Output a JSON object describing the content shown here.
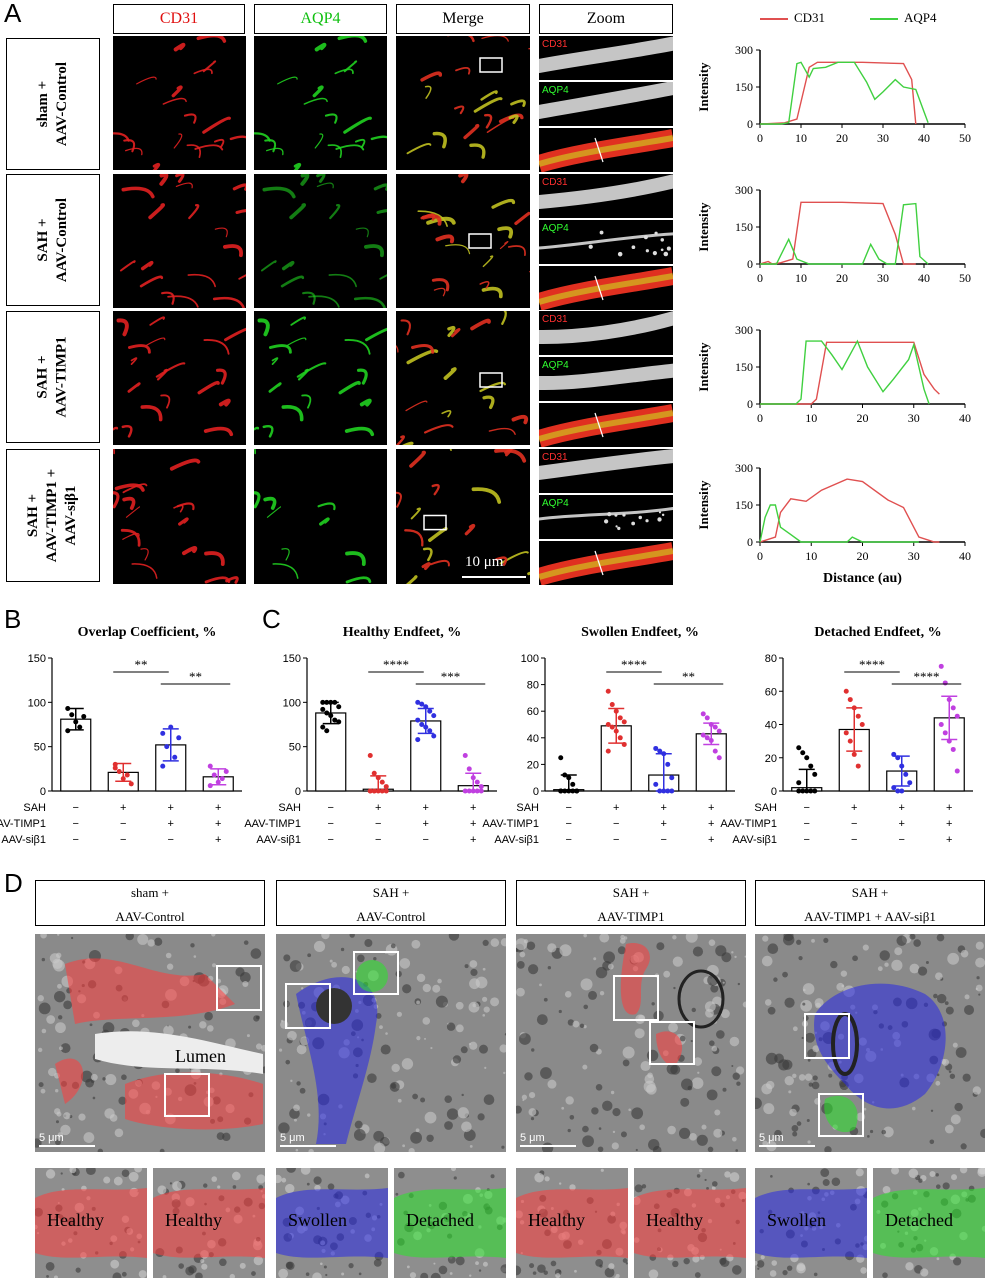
{
  "panel_letters": {
    "a": "A",
    "b": "B",
    "c": "C",
    "d": "D"
  },
  "panel_a": {
    "column_headers": [
      "CD31",
      "AQP4",
      "Merge",
      "Zoom"
    ],
    "header_colors": [
      "#e01010",
      "#10c010",
      "#000000",
      "#000000"
    ],
    "rows": [
      {
        "line1": "sham +",
        "line2": "AAV-Control",
        "line3": ""
      },
      {
        "line1": "SAH +",
        "line2": "AAV-Control",
        "line3": ""
      },
      {
        "line1": "SAH +",
        "line2": "AAV-TIMP1",
        "line3": ""
      },
      {
        "line1": "SAH +",
        "line2": "AAV-TIMP1 +",
        "line3": "AAV-siβ1"
      }
    ],
    "zoom_labels": {
      "cd31": "CD31",
      "aqp4": "AQP4"
    },
    "scale_bar": "10 μm",
    "legend": {
      "cd31": "CD31",
      "aqp4": "AQP4"
    },
    "ylabel": "Intensity",
    "xlabel": "Distance (au)"
  },
  "chart_data": [
    {
      "type": "line",
      "panel": "A-1",
      "xlim": [
        0,
        50
      ],
      "ylim": [
        0,
        300
      ],
      "xticks": [
        0,
        10,
        20,
        30,
        40,
        50
      ],
      "yticks": [
        0,
        150,
        300
      ],
      "series": [
        {
          "name": "CD31",
          "color": "#e05050",
          "x": [
            0,
            6,
            9,
            12,
            14,
            25,
            35,
            37,
            38
          ],
          "y": [
            0,
            5,
            20,
            230,
            250,
            250,
            245,
            180,
            0
          ]
        },
        {
          "name": "AQP4",
          "color": "#40d040",
          "x": [
            0,
            5,
            7,
            9,
            10,
            12,
            13,
            16,
            19,
            23,
            26,
            28,
            30,
            33,
            35,
            38,
            40,
            41
          ],
          "y": [
            0,
            0,
            5,
            245,
            250,
            190,
            225,
            230,
            250,
            250,
            170,
            100,
            130,
            180,
            150,
            140,
            50,
            5
          ]
        }
      ]
    },
    {
      "type": "line",
      "panel": "A-2",
      "xlim": [
        0,
        50
      ],
      "ylim": [
        0,
        300
      ],
      "xticks": [
        0,
        10,
        20,
        30,
        40,
        50
      ],
      "yticks": [
        0,
        150,
        300
      ],
      "series": [
        {
          "name": "CD31",
          "color": "#e05050",
          "x": [
            0,
            2,
            3,
            5,
            8,
            10,
            20,
            30,
            33,
            35,
            38
          ],
          "y": [
            0,
            10,
            0,
            5,
            20,
            250,
            250,
            245,
            120,
            0,
            0
          ]
        },
        {
          "name": "AQP4",
          "color": "#40d040",
          "x": [
            0,
            4,
            7,
            9,
            12,
            25,
            27,
            29,
            31,
            33,
            35,
            38,
            39,
            41
          ],
          "y": [
            0,
            0,
            100,
            20,
            0,
            0,
            80,
            20,
            0,
            0,
            240,
            245,
            30,
            0
          ]
        }
      ]
    },
    {
      "type": "line",
      "panel": "A-3",
      "xlim": [
        0,
        40
      ],
      "ylim": [
        0,
        300
      ],
      "xticks": [
        0,
        10,
        20,
        30,
        40
      ],
      "yticks": [
        0,
        150,
        300
      ],
      "series": [
        {
          "name": "CD31",
          "color": "#e05050",
          "x": [
            0,
            10,
            11,
            13,
            20,
            30,
            32,
            34,
            35
          ],
          "y": [
            0,
            0,
            20,
            250,
            250,
            250,
            120,
            60,
            40
          ]
        },
        {
          "name": "AQP4",
          "color": "#40d040",
          "x": [
            0,
            7,
            8,
            9,
            12,
            14,
            16,
            19,
            21,
            24,
            26,
            29,
            30,
            32,
            33
          ],
          "y": [
            0,
            0,
            20,
            255,
            255,
            200,
            140,
            255,
            150,
            50,
            100,
            180,
            240,
            60,
            0
          ]
        }
      ]
    },
    {
      "type": "line",
      "panel": "A-4",
      "xlim": [
        0,
        40
      ],
      "ylim": [
        0,
        300
      ],
      "xticks": [
        0,
        10,
        20,
        30,
        40
      ],
      "yticks": [
        0,
        150,
        300
      ],
      "series": [
        {
          "name": "CD31",
          "color": "#e05050",
          "x": [
            0,
            3,
            4,
            6,
            9,
            12,
            17,
            20,
            25,
            28,
            31,
            34,
            35
          ],
          "y": [
            0,
            20,
            120,
            175,
            165,
            210,
            255,
            245,
            170,
            140,
            20,
            0,
            0
          ]
        },
        {
          "name": "AQP4",
          "color": "#40d040",
          "x": [
            0,
            1,
            2,
            3,
            4,
            6,
            8,
            17,
            18,
            20,
            31
          ],
          "y": [
            0,
            100,
            150,
            150,
            60,
            30,
            0,
            0,
            20,
            0,
            0
          ]
        }
      ]
    },
    {
      "type": "bar",
      "panel": "B",
      "title": "Overlap Coefficient, %",
      "ylim": [
        0,
        150
      ],
      "yticks": [
        0,
        50,
        100,
        150
      ],
      "values": [
        81,
        21,
        52,
        16
      ],
      "errors": [
        12,
        10,
        18,
        9
      ],
      "colors": [
        "#000000",
        "#e03030",
        "#3030e0",
        "#c040e0"
      ],
      "points": [
        [
          93,
          86,
          78,
          72,
          84,
          68
        ],
        [
          30,
          22,
          14,
          18,
          8,
          26
        ],
        [
          65,
          50,
          72,
          38,
          60,
          28
        ],
        [
          28,
          18,
          10,
          14,
          22,
          6
        ]
      ],
      "significance": [
        {
          "from": 1,
          "to": 2,
          "label": "**"
        },
        {
          "from": 2,
          "to": 3,
          "label": "**"
        }
      ]
    },
    {
      "type": "bar",
      "panel": "C-1",
      "title": "Healthy Endfeet, %",
      "ylim": [
        0,
        150
      ],
      "yticks": [
        0,
        50,
        100,
        150
      ],
      "values": [
        88,
        2,
        79,
        6
      ],
      "errors": [
        12,
        15,
        14,
        14
      ],
      "colors": [
        "#000000",
        "#e03030",
        "#3030e0",
        "#c040e0"
      ],
      "points": [
        [
          100,
          100,
          100,
          100,
          95,
          92,
          88,
          85,
          80,
          78,
          72,
          68
        ],
        [
          40,
          20,
          15,
          10,
          5,
          0,
          0,
          0,
          0,
          0,
          0,
          0
        ],
        [
          100,
          98,
          95,
          90,
          85,
          80,
          75,
          72,
          68,
          62,
          58
        ],
        [
          40,
          25,
          15,
          10,
          5,
          0,
          0,
          0,
          0,
          0
        ]
      ],
      "significance": [
        {
          "from": 1,
          "to": 2,
          "label": "****"
        },
        {
          "from": 2,
          "to": 3,
          "label": "***"
        }
      ]
    },
    {
      "type": "bar",
      "panel": "C-2",
      "title": "Swollen Endfeet, %",
      "ylim": [
        0,
        100
      ],
      "yticks": [
        0,
        20,
        40,
        60,
        80,
        100
      ],
      "values": [
        1,
        49,
        12,
        43
      ],
      "errors": [
        11,
        13,
        16,
        8
      ],
      "colors": [
        "#000000",
        "#e03030",
        "#3030e0",
        "#c040e0"
      ],
      "points": [
        [
          25,
          12,
          10,
          5,
          0,
          0,
          0,
          0,
          0,
          0,
          0
        ],
        [
          75,
          65,
          60,
          55,
          52,
          50,
          48,
          45,
          40,
          35,
          30
        ],
        [
          32,
          30,
          28,
          20,
          10,
          5,
          0,
          0,
          0,
          0
        ],
        [
          58,
          55,
          50,
          48,
          45,
          42,
          40,
          38,
          30,
          25
        ]
      ],
      "significance": [
        {
          "from": 1,
          "to": 2,
          "label": "****"
        },
        {
          "from": 2,
          "to": 3,
          "label": "**"
        }
      ]
    },
    {
      "type": "bar",
      "panel": "C-3",
      "title": "Detached Endfeet, %",
      "ylim": [
        0,
        80
      ],
      "yticks": [
        0,
        20,
        40,
        60,
        80
      ],
      "values": [
        2,
        37,
        12,
        44
      ],
      "errors": [
        11,
        13,
        9,
        13
      ],
      "colors": [
        "#000000",
        "#e03030",
        "#3030e0",
        "#c040e0"
      ],
      "points": [
        [
          26,
          23,
          20,
          15,
          10,
          5,
          0,
          0,
          0,
          0,
          0
        ],
        [
          60,
          55,
          50,
          45,
          40,
          35,
          30,
          22,
          15
        ],
        [
          22,
          20,
          15,
          10,
          5,
          2,
          0,
          0
        ],
        [
          75,
          65,
          55,
          50,
          45,
          40,
          35,
          30,
          25,
          12
        ]
      ],
      "significance": [
        {
          "from": 1,
          "to": 2,
          "label": "****"
        },
        {
          "from": 2,
          "to": 3,
          "label": "****"
        }
      ]
    }
  ],
  "treatment_table": {
    "labels": [
      "SAH",
      "AAV-TIMP1",
      "AAV-siβ1"
    ],
    "values": [
      [
        "−",
        "+",
        "+",
        "+"
      ],
      [
        "−",
        "−",
        "+",
        "+"
      ],
      [
        "−",
        "−",
        "−",
        "+"
      ]
    ]
  },
  "panel_d": {
    "headers": [
      {
        "line1": "sham +",
        "line2": "AAV-Control"
      },
      {
        "line1": "SAH +",
        "line2": "AAV-Control"
      },
      {
        "line1": "SAH +",
        "line2": "AAV-TIMP1"
      },
      {
        "line1": "SAH +",
        "line2": "AAV-TIMP1 + AAV-siβ1"
      }
    ],
    "lumen_label": "Lumen",
    "scale_bar": "5 μm",
    "zoom_labels": [
      [
        "Healthy",
        "Healthy"
      ],
      [
        "Swollen",
        "Detached"
      ],
      [
        "Healthy",
        "Healthy"
      ],
      [
        "Swollen",
        "Detached"
      ]
    ]
  }
}
